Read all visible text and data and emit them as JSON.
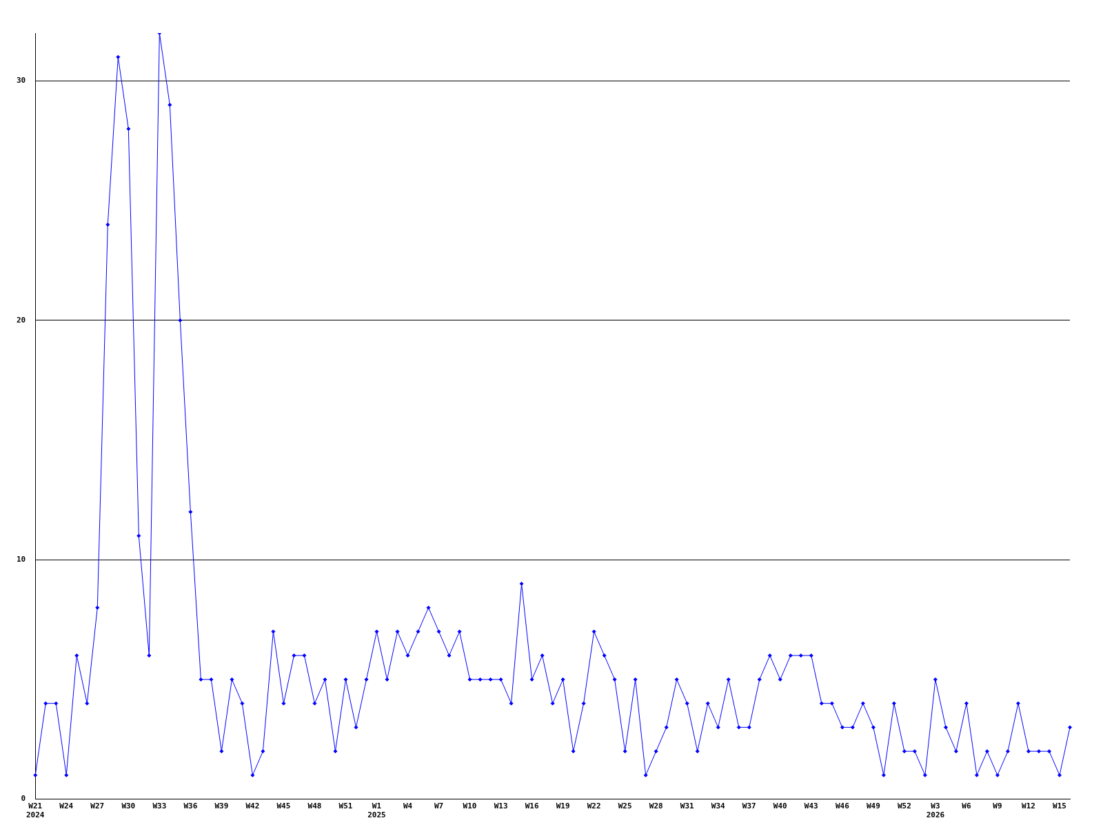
{
  "chart_data": {
    "type": "line",
    "categories": [
      "W21\n2024",
      null,
      null,
      "W24",
      null,
      null,
      "W27",
      null,
      null,
      "W30",
      null,
      null,
      "W33",
      null,
      null,
      "W36",
      null,
      null,
      "W39",
      null,
      null,
      "W42",
      null,
      null,
      "W45",
      null,
      null,
      "W48",
      null,
      null,
      "W51",
      null,
      null,
      "W1\n2025",
      null,
      null,
      "W4",
      null,
      null,
      "W7",
      null,
      null,
      "W10",
      null,
      null,
      "W13",
      null,
      null,
      "W16",
      null,
      null,
      "W19",
      null,
      null,
      "W22",
      null,
      null,
      "W25",
      null,
      null,
      "W28",
      null,
      null,
      "W31",
      null,
      null,
      "W34",
      null,
      null,
      "W37",
      null,
      null,
      "W40",
      null,
      null,
      "W43",
      null,
      null,
      "W46",
      null,
      null,
      "W49",
      null,
      null,
      "W52",
      null,
      null,
      "W3\n2026",
      null,
      null,
      "W6",
      null,
      null,
      "W9",
      null,
      null,
      "W12",
      null,
      null,
      "W15",
      null
    ],
    "series": [
      {
        "color": "#0000ff",
        "values": [
          1,
          4,
          4,
          1,
          6,
          4,
          8,
          24,
          31,
          28,
          11,
          6,
          32,
          29,
          20,
          12,
          5,
          5,
          2,
          5,
          4,
          1,
          2,
          7,
          4,
          6,
          6,
          4,
          5,
          2,
          5,
          3,
          5,
          7,
          5,
          7,
          6,
          7,
          8,
          7,
          6,
          7,
          5,
          5,
          5,
          5,
          4,
          9,
          5,
          6,
          4,
          5,
          2,
          4,
          7,
          6,
          5,
          2,
          5,
          1,
          2,
          3,
          5,
          4,
          2,
          4,
          3,
          5,
          3,
          3,
          5,
          6,
          5,
          6,
          6,
          6,
          4,
          4,
          3,
          3,
          4,
          3,
          1,
          4,
          2,
          2,
          1,
          5,
          3,
          2,
          4,
          1,
          2,
          1,
          2,
          4,
          2,
          2,
          2,
          1,
          3
        ]
      }
    ],
    "ylim": [
      0,
      32
    ],
    "yticks": [
      0,
      10,
      20,
      30
    ],
    "grid": "y",
    "legend": false,
    "marker": "diamond",
    "line_style": "solid"
  }
}
